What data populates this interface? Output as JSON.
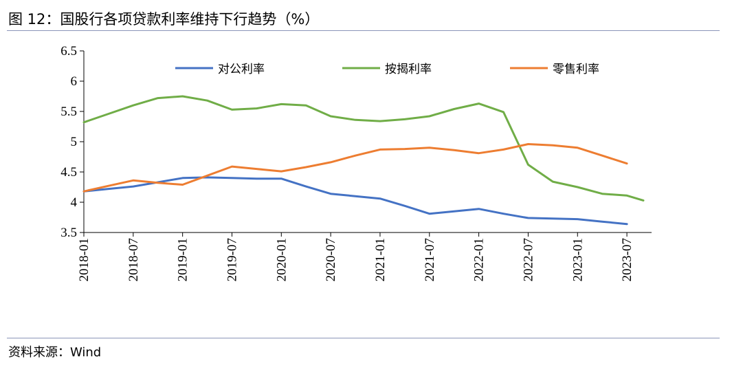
{
  "header": {
    "title": "图 12：国股行各项贷款利率维持下行趋势（%）"
  },
  "footer": {
    "source": "资料来源：Wind"
  },
  "chart_data": {
    "type": "line",
    "title": "图 12：国股行各项贷款利率维持下行趋势（%）",
    "xlabel": "",
    "ylabel": "",
    "ylim": [
      3.5,
      6.5
    ],
    "yticks": [
      "6.5",
      "6",
      "5.5",
      "5",
      "4.5",
      "4",
      "3.5"
    ],
    "xticks": [
      "2018-01",
      "2018-07",
      "2019-01",
      "2019-07",
      "2020-01",
      "2020-07",
      "2021-01",
      "2021-07",
      "2022-01",
      "2022-07",
      "2023-01",
      "2023-07"
    ],
    "x": [
      "2018-01",
      "2018-04",
      "2018-07",
      "2018-10",
      "2019-01",
      "2019-04",
      "2019-07",
      "2019-10",
      "2020-01",
      "2020-04",
      "2020-07",
      "2020-10",
      "2021-01",
      "2021-04",
      "2021-07",
      "2021-10",
      "2022-01",
      "2022-04",
      "2022-07",
      "2022-10",
      "2023-01",
      "2023-04",
      "2023-07",
      "2023-09"
    ],
    "legend_position": "top",
    "series": [
      {
        "name": "对公利率",
        "color": "#4472c4",
        "values": [
          4.18,
          4.22,
          4.26,
          4.33,
          4.4,
          4.41,
          4.4,
          4.39,
          4.39,
          4.26,
          4.14,
          4.1,
          4.06,
          3.94,
          3.81,
          3.85,
          3.89,
          3.81,
          3.74,
          3.73,
          3.72,
          3.68,
          3.64,
          null
        ]
      },
      {
        "name": "按揭利率",
        "color": "#70ad47",
        "values": [
          5.32,
          5.46,
          5.6,
          5.72,
          5.75,
          5.68,
          5.53,
          5.55,
          5.62,
          5.6,
          5.42,
          5.36,
          5.34,
          5.37,
          5.42,
          5.54,
          5.63,
          5.49,
          4.62,
          4.34,
          4.25,
          4.14,
          4.11,
          4.03
        ]
      },
      {
        "name": "零售利率",
        "color": "#ed7d31",
        "values": [
          4.18,
          4.27,
          4.36,
          4.32,
          4.29,
          4.44,
          4.59,
          4.55,
          4.51,
          4.58,
          4.66,
          4.77,
          4.87,
          4.88,
          4.9,
          4.86,
          4.81,
          4.87,
          4.96,
          4.94,
          4.9,
          4.77,
          4.64,
          null
        ]
      }
    ]
  }
}
